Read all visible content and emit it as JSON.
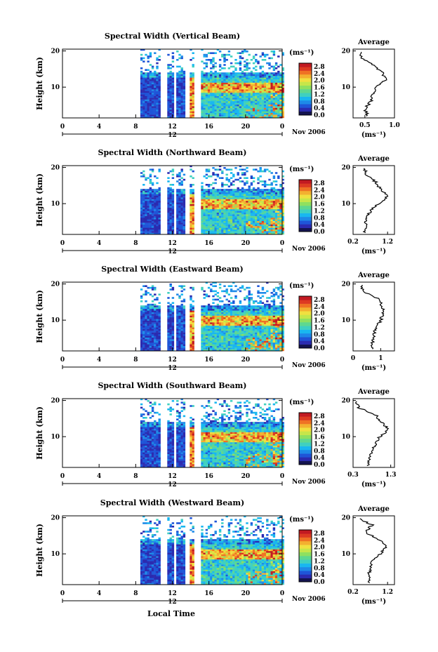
{
  "figure": {
    "local_time_label": "Local Time",
    "month_label": "Nov 2006",
    "colorbar_unit": "(ms⁻¹)",
    "colorbar_ticks": [
      "0.0",
      "0.4",
      "0.8",
      "1.2",
      "1.6",
      "2.0",
      "2.4",
      "2.8"
    ],
    "height_ylabel": "Height (km)",
    "average_title": "Average",
    "average_xlabel": "(ms⁻¹)",
    "colormap": [
      "#141450",
      "#2b2bb0",
      "#1f55d8",
      "#1e8ae8",
      "#19b7f0",
      "#3fd0c0",
      "#5ed890",
      "#8fe060",
      "#c6e64a",
      "#f0e040",
      "#f3b030",
      "#ef7224",
      "#dd3a22",
      "#c21a22"
    ]
  },
  "chart_data": [
    {
      "type": "heatmap",
      "title": "Spectral Width (Vertical Beam)",
      "ylabel": "Height (km)",
      "x_ticks": [
        "0",
        "4",
        "8",
        "12",
        "16",
        "20",
        "0"
      ],
      "day_label": "12",
      "y_ticks": [
        "20",
        "10"
      ],
      "xlim": [
        0,
        24
      ],
      "ylim": [
        1.5,
        20.5
      ],
      "colorbar_range": [
        0.0,
        3.0
      ],
      "data_start_hour": 8.5,
      "gaps": [
        [
          10.7,
          11.3
        ],
        [
          12.0,
          12.3
        ],
        [
          13.2,
          13.8
        ],
        [
          14.2,
          15.0
        ]
      ],
      "top_height_km": 12.5,
      "average": {
        "title": "Average",
        "x_ticks": [
          "0.5",
          "1.0"
        ],
        "xlim": [
          0.3,
          1.0
        ],
        "xlabel": "(ms⁻¹)",
        "height_km": [
          2,
          4,
          6,
          8,
          10,
          12,
          14,
          16,
          18,
          20
        ],
        "values": [
          0.55,
          0.5,
          0.6,
          0.62,
          0.7,
          0.85,
          0.8,
          0.65,
          0.45,
          0.42
        ]
      }
    },
    {
      "type": "heatmap",
      "title": "Spectral Width (Northward Beam)",
      "ylabel": "Height (km)",
      "x_ticks": [
        "0",
        "4",
        "8",
        "12",
        "16",
        "20",
        "0"
      ],
      "day_label": "12",
      "y_ticks": [
        "20",
        "10"
      ],
      "xlim": [
        0,
        24
      ],
      "ylim": [
        1.5,
        20.5
      ],
      "colorbar_range": [
        0.0,
        3.0
      ],
      "data_start_hour": 8.5,
      "gaps": [
        [
          10.7,
          11.3
        ],
        [
          12.0,
          12.3
        ],
        [
          13.2,
          13.8
        ],
        [
          14.2,
          15.0
        ]
      ],
      "top_height_km": 12.5,
      "average": {
        "title": "Average",
        "x_ticks": [
          "0.2",
          "1.2"
        ],
        "xlim": [
          0.2,
          1.4
        ],
        "xlabel": "(ms⁻¹)",
        "height_km": [
          2,
          4,
          6,
          8,
          10,
          12,
          14,
          16,
          18,
          20
        ],
        "values": [
          0.55,
          0.55,
          0.6,
          0.7,
          0.95,
          1.2,
          1.0,
          0.85,
          0.6,
          0.5
        ]
      }
    },
    {
      "type": "heatmap",
      "title": "Spectral Width (Eastward Beam)",
      "ylabel": "Height (km)",
      "x_ticks": [
        "0",
        "4",
        "8",
        "12",
        "16",
        "20",
        "0"
      ],
      "day_label": "12",
      "y_ticks": [
        "20",
        "10"
      ],
      "xlim": [
        0,
        24
      ],
      "ylim": [
        1.5,
        20.5
      ],
      "colorbar_range": [
        0.0,
        3.0
      ],
      "data_start_hour": 8.5,
      "gaps": [
        [
          10.7,
          11.3
        ],
        [
          12.0,
          12.3
        ],
        [
          13.2,
          13.8
        ],
        [
          14.2,
          15.0
        ]
      ],
      "top_height_km": 12.5,
      "average": {
        "title": "Average",
        "x_ticks": [
          "0",
          "1"
        ],
        "xlim": [
          0.0,
          1.5
        ],
        "xlabel": "(ms⁻¹)",
        "height_km": [
          2,
          4,
          6,
          8,
          10,
          12,
          14,
          16,
          18,
          20
        ],
        "values": [
          0.7,
          0.7,
          0.75,
          0.85,
          1.0,
          1.1,
          1.05,
          0.9,
          0.35,
          0.3
        ]
      }
    },
    {
      "type": "heatmap",
      "title": "Spectral Width (Southward Beam)",
      "ylabel": "Height (km)",
      "x_ticks": [
        "0",
        "4",
        "8",
        "12",
        "16",
        "20",
        "0"
      ],
      "day_label": "12",
      "y_ticks": [
        "20",
        "10"
      ],
      "xlim": [
        0,
        24
      ],
      "ylim": [
        1.5,
        20.5
      ],
      "colorbar_range": [
        0.0,
        3.0
      ],
      "data_start_hour": 8.5,
      "gaps": [
        [
          10.7,
          11.3
        ],
        [
          12.0,
          12.3
        ],
        [
          13.2,
          13.8
        ],
        [
          14.2,
          15.0
        ]
      ],
      "top_height_km": 12.5,
      "average": {
        "title": "Average",
        "x_ticks": [
          "0.3",
          "1.3"
        ],
        "xlim": [
          0.3,
          1.4
        ],
        "xlabel": "(ms⁻¹)",
        "height_km": [
          2,
          4,
          6,
          8,
          10,
          12,
          14,
          16,
          18,
          20
        ],
        "values": [
          0.7,
          0.75,
          0.8,
          0.9,
          1.0,
          1.25,
          1.05,
          0.9,
          0.45,
          0.35
        ]
      }
    },
    {
      "type": "heatmap",
      "title": "Spectral Width (Westward Beam)",
      "ylabel": "Height (km)",
      "x_ticks": [
        "0",
        "4",
        "8",
        "12",
        "16",
        "20",
        "0"
      ],
      "day_label": "12",
      "y_ticks": [
        "20",
        "10"
      ],
      "xlim": [
        0,
        24
      ],
      "ylim": [
        1.5,
        20.5
      ],
      "colorbar_range": [
        0.0,
        3.0
      ],
      "data_start_hour": 8.5,
      "gaps": [
        [
          10.7,
          11.3
        ],
        [
          12.0,
          12.3
        ],
        [
          13.2,
          13.8
        ],
        [
          14.2,
          15.0
        ]
      ],
      "top_height_km": 12.5,
      "average": {
        "title": "Average",
        "x_ticks": [
          "0.2",
          "1.2"
        ],
        "xlim": [
          0.2,
          1.4
        ],
        "xlabel": "(ms⁻¹)",
        "height_km": [
          2,
          4,
          6,
          8,
          10,
          12,
          14,
          16,
          18,
          20
        ],
        "values": [
          0.65,
          0.65,
          0.7,
          0.75,
          1.0,
          1.15,
          0.95,
          0.55,
          0.75,
          0.3
        ]
      }
    }
  ]
}
